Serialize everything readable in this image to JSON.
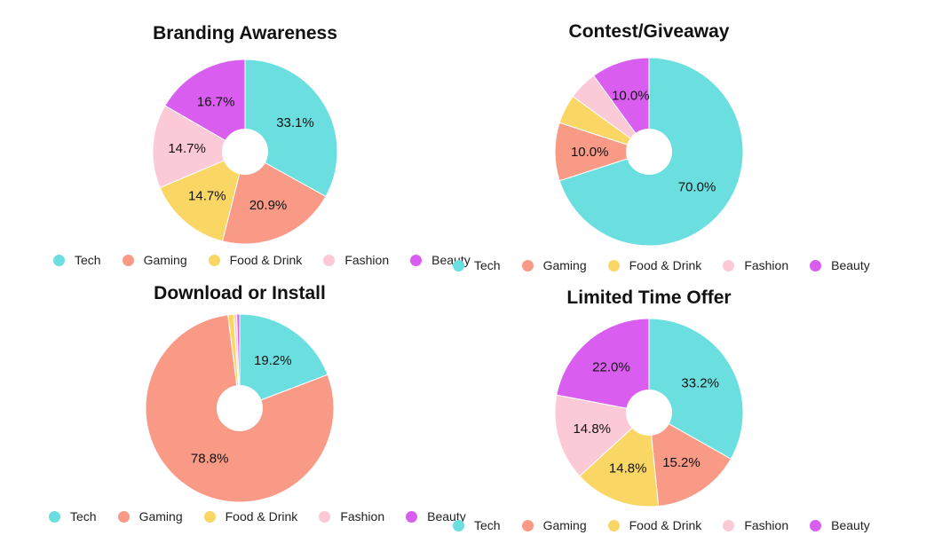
{
  "colors": {
    "Tech": "#6bdfdf",
    "Gaming": "#f99a86",
    "Food & Drink": "#fad665",
    "Fashion": "#fccad6",
    "Beauty": "#d95ef0"
  },
  "chart_data": [
    {
      "type": "pie",
      "title": "Branding Awareness",
      "categories": [
        "Tech",
        "Gaming",
        "Food & Drink",
        "Fashion",
        "Beauty"
      ],
      "values": [
        33.1,
        20.9,
        14.7,
        14.7,
        16.7
      ],
      "labels": [
        "33.1%",
        "20.9%",
        "14.7%",
        "14.7%",
        "16.7%"
      ],
      "legend": "bottom"
    },
    {
      "type": "pie",
      "title": "Contest/Giveaway",
      "categories": [
        "Tech",
        "Gaming",
        "Food & Drink",
        "Fashion",
        "Beauty"
      ],
      "values": [
        70.0,
        10.0,
        5.0,
        5.0,
        10.0
      ],
      "labels": [
        "70.0%",
        "10.0%",
        "",
        "",
        "10.0%"
      ],
      "legend": "bottom"
    },
    {
      "type": "pie",
      "title": "Download or Install",
      "categories": [
        "Tech",
        "Gaming",
        "Food & Drink",
        "Fashion",
        "Beauty"
      ],
      "values": [
        19.2,
        78.8,
        1.0,
        0.5,
        0.5
      ],
      "labels": [
        "19.2%",
        "78.8%",
        "",
        "",
        ""
      ],
      "legend": "bottom"
    },
    {
      "type": "pie",
      "title": "Limited Time Offer",
      "categories": [
        "Tech",
        "Gaming",
        "Food & Drink",
        "Fashion",
        "Beauty"
      ],
      "values": [
        33.2,
        15.2,
        14.8,
        14.8,
        22.0
      ],
      "labels": [
        "33.2%",
        "15.2%",
        "14.8%",
        "14.8%",
        "22.0%"
      ],
      "legend": "bottom"
    }
  ]
}
